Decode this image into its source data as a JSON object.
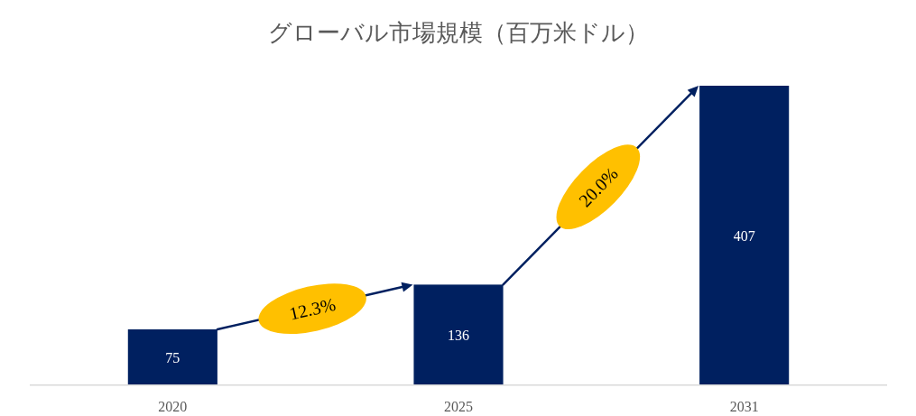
{
  "chart_data": {
    "type": "bar",
    "title": "グローバル市場規模（百万米ドル）",
    "categories": [
      "2020",
      "2025",
      "2031"
    ],
    "values": [
      75,
      136,
      407
    ],
    "color": "#002060",
    "data_labels": true,
    "annotations": [
      "12.3%",
      "20.0%"
    ]
  }
}
